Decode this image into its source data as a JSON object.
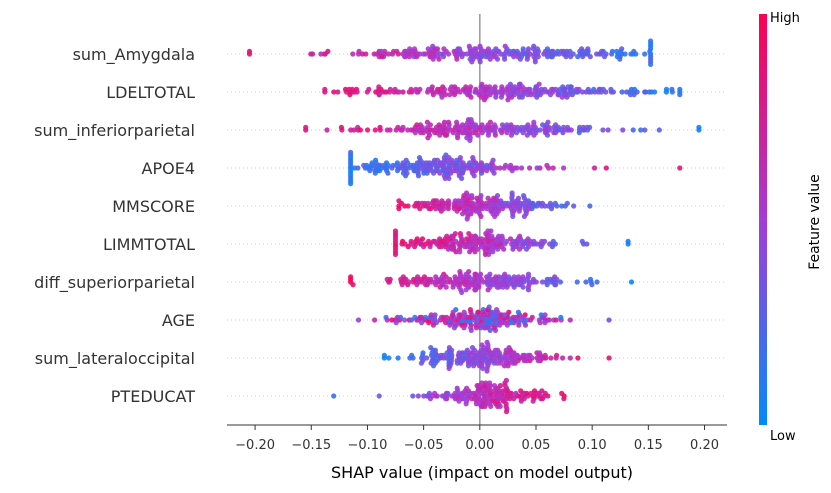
{
  "chart_data": {
    "type": "scatter",
    "subtype": "shap-beeswarm",
    "xlabel": "SHAP value (impact on model output)",
    "xlim": [
      -0.225,
      0.22
    ],
    "xticks": [
      -0.2,
      -0.15,
      -0.1,
      -0.05,
      0.0,
      0.05,
      0.1,
      0.15,
      0.2
    ],
    "xtick_labels": [
      "−0.20",
      "−0.15",
      "−0.10",
      "−0.05",
      "0.00",
      "0.05",
      "0.10",
      "0.15",
      "0.20"
    ],
    "colorbar": {
      "title": "Feature value",
      "high_label": "High",
      "low_label": "Low",
      "high_color": "#ff0051",
      "mid_color": "#a63bd6",
      "low_color": "#008bfb"
    },
    "features": [
      {
        "name": "sum_Amygdala",
        "min": -0.205,
        "max": 0.152,
        "center": 0.02,
        "spread": 0.07,
        "trend": -1,
        "n": 240
      },
      {
        "name": "LDELTOTAL",
        "min": -0.138,
        "max": 0.178,
        "center": 0.02,
        "spread": 0.065,
        "trend": -1,
        "n": 240
      },
      {
        "name": "sum_inferiorparietal",
        "min": -0.155,
        "max": 0.195,
        "center": 0.0,
        "spread": 0.06,
        "trend": -1,
        "n": 220
      },
      {
        "name": "APOE4",
        "min": -0.115,
        "max": 0.178,
        "center": -0.04,
        "spread": 0.045,
        "trend": 1,
        "n": 220
      },
      {
        "name": "MMSCORE",
        "min": -0.072,
        "max": 0.098,
        "center": 0.0,
        "spread": 0.035,
        "trend": -1,
        "n": 200
      },
      {
        "name": "LIMMTOTAL",
        "min": -0.075,
        "max": 0.132,
        "center": 0.0,
        "spread": 0.04,
        "trend": -1,
        "n": 200
      },
      {
        "name": "diff_superiorparietal",
        "min": -0.115,
        "max": 0.135,
        "center": 0.0,
        "spread": 0.04,
        "trend": -1,
        "n": 200
      },
      {
        "name": "AGE",
        "min": -0.108,
        "max": 0.115,
        "center": 0.0,
        "spread": 0.035,
        "trend": 0,
        "n": 200
      },
      {
        "name": "sum_lateraloccipital",
        "min": -0.085,
        "max": 0.115,
        "center": 0.0,
        "spread": 0.035,
        "trend": 1,
        "n": 200
      },
      {
        "name": "PTEDUCAT",
        "min": -0.13,
        "max": 0.075,
        "center": 0.005,
        "spread": 0.025,
        "trend": 1,
        "n": 180
      }
    ]
  }
}
